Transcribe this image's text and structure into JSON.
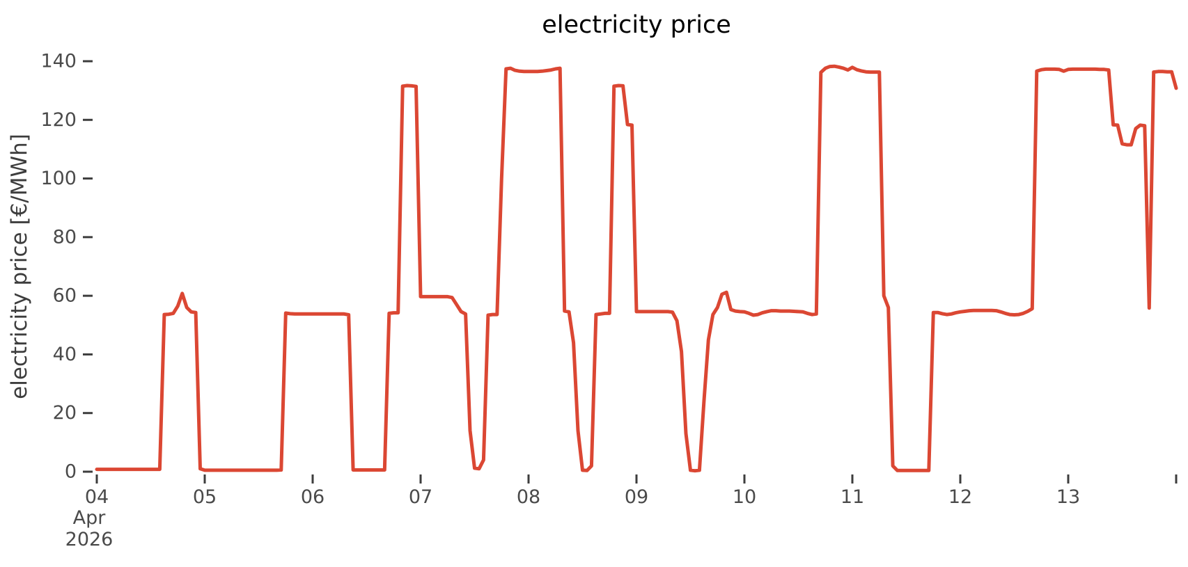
{
  "title": "electricity price",
  "colors": {
    "line": "#db4733",
    "axis_text": "#4a4a4a",
    "tick_mark": "#3d3d3d",
    "title_text": "#000000",
    "background": "#ffffff"
  },
  "y_axis": {
    "label": "electricity price [€/MWh]",
    "ticks": [
      0,
      20,
      40,
      60,
      80,
      100,
      120,
      140
    ]
  },
  "x_axis": {
    "ticks": [
      {
        "label": "04",
        "day": 0
      },
      {
        "label": "05",
        "day": 1
      },
      {
        "label": "06",
        "day": 2
      },
      {
        "label": "07",
        "day": 3
      },
      {
        "label": "08",
        "day": 4
      },
      {
        "label": "09",
        "day": 5
      },
      {
        "label": "10",
        "day": 6
      },
      {
        "label": "11",
        "day": 7
      },
      {
        "label": "12",
        "day": 8
      },
      {
        "label": "13",
        "day": 9
      },
      {
        "label": "",
        "day": 10
      }
    ],
    "month_label": "Apr",
    "year_label": "2026"
  },
  "chart_data": {
    "type": "line",
    "title": "electricity price",
    "xlabel": "",
    "ylabel": "electricity price [€/MWh]",
    "x_start": "2026-04-04 00:00",
    "x_end": "2026-04-14 00:00",
    "x_step_hours": 1,
    "x_tick_labels": [
      "04",
      "05",
      "06",
      "07",
      "08",
      "09",
      "10",
      "11",
      "12",
      "13"
    ],
    "ylim": [
      0,
      140
    ],
    "grid": false,
    "legend": false,
    "series": [
      {
        "name": "electricity price",
        "unit": "€/MWh",
        "values": [
          0.8,
          0.8,
          0.8,
          0.8,
          0.8,
          0.8,
          0.8,
          0.8,
          0.8,
          0.8,
          0.8,
          0.8,
          0.8,
          0.8,
          0.8,
          53.6,
          53.7,
          54.0,
          56.5,
          60.8,
          56.0,
          54.5,
          54.3,
          1.0,
          0.5,
          0.5,
          0.5,
          0.5,
          0.5,
          0.5,
          0.5,
          0.5,
          0.5,
          0.5,
          0.5,
          0.5,
          0.5,
          0.5,
          0.5,
          0.5,
          0.5,
          0.6,
          54.1,
          53.9,
          53.8,
          53.8,
          53.8,
          53.8,
          53.8,
          53.8,
          53.8,
          53.8,
          53.8,
          53.8,
          53.8,
          53.8,
          53.5,
          0.6,
          0.6,
          0.6,
          0.6,
          0.6,
          0.6,
          0.6,
          0.6,
          54.0,
          54.2,
          54.2,
          131.5,
          131.7,
          131.6,
          131.4,
          59.7,
          59.7,
          59.7,
          59.7,
          59.7,
          59.7,
          59.7,
          59.4,
          57.0,
          54.6,
          53.8,
          14.0,
          1.2,
          1.0,
          4.0,
          53.4,
          53.6,
          53.6,
          100.0,
          137.4,
          137.6,
          136.9,
          136.6,
          136.5,
          136.5,
          136.5,
          136.5,
          136.6,
          136.8,
          137.0,
          137.4,
          137.6,
          54.8,
          54.5,
          44.0,
          14.0,
          0.5,
          0.4,
          2.0,
          53.6,
          53.8,
          54.0,
          54.0,
          131.5,
          131.7,
          131.6,
          118.4,
          118.2,
          54.6,
          54.6,
          54.6,
          54.6,
          54.6,
          54.6,
          54.6,
          54.6,
          54.4,
          51.5,
          41.0,
          13.0,
          0.5,
          0.3,
          0.5,
          24.0,
          45.0,
          53.6,
          56.0,
          60.5,
          61.2,
          55.3,
          54.8,
          54.6,
          54.5,
          54.0,
          53.4,
          53.6,
          54.2,
          54.6,
          54.9,
          54.9,
          54.8,
          54.8,
          54.8,
          54.7,
          54.6,
          54.5,
          54.0,
          53.6,
          53.8,
          136.2,
          137.6,
          138.2,
          138.3,
          138.0,
          137.6,
          137.0,
          137.9,
          137.1,
          136.7,
          136.4,
          136.3,
          136.3,
          136.3,
          60.0,
          56.0,
          2.0,
          0.4,
          0.4,
          0.4,
          0.4,
          0.4,
          0.4,
          0.4,
          0.4,
          54.3,
          54.3,
          53.9,
          53.6,
          53.8,
          54.2,
          54.5,
          54.7,
          54.9,
          55.0,
          55.0,
          55.0,
          55.0,
          55.0,
          54.9,
          54.5,
          54.0,
          53.6,
          53.5,
          53.6,
          54.0,
          54.7,
          55.6,
          136.6,
          137.1,
          137.3,
          137.3,
          137.3,
          137.2,
          136.6,
          137.2,
          137.3,
          137.3,
          137.3,
          137.3,
          137.3,
          137.3,
          137.2,
          137.2,
          137.0,
          118.3,
          118.2,
          111.8,
          111.5,
          111.5,
          117.0,
          118.2,
          118.0,
          55.8,
          136.3,
          136.5,
          136.5,
          136.4,
          136.4,
          130.8
        ]
      }
    ]
  }
}
